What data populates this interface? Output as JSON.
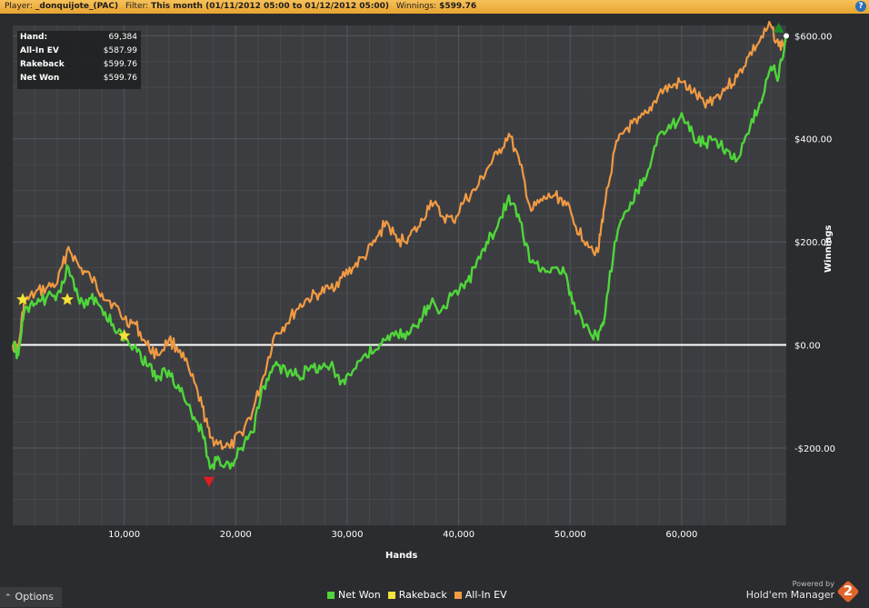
{
  "header": {
    "player_label": "Player:",
    "player_value": "_donquijote_(PAC)",
    "filter_label": "Filter:",
    "filter_value": "This month (01/11/2012 05:00 to 01/12/2012 05:00)",
    "winnings_label": "Winnings:",
    "winnings_value": "$599.76",
    "help_label": "?"
  },
  "stats": [
    {
      "label": "Hand:",
      "value": "69,384"
    },
    {
      "label": "All-In EV",
      "value": "$587.99"
    },
    {
      "label": "Rakeback",
      "value": "$599.76"
    },
    {
      "label": "Net Won",
      "value": "$599.76"
    }
  ],
  "footer": {
    "options_label": "Options",
    "powered_by": "Powered by",
    "brand": "Hold'em Manager",
    "brand_num": "2"
  },
  "colors": {
    "net_won": "#4fd63a",
    "rakeback": "#f3e33a",
    "all_in_ev": "#f09a43",
    "zero_line": "#ffffff",
    "max_marker": "#1f8a2a",
    "min_marker": "#e01c1c"
  },
  "chart_data": {
    "type": "line",
    "xlabel": "Hands",
    "ylabel": "Winnings",
    "xlim": [
      0,
      69384
    ],
    "ylim": [
      -350,
      620
    ],
    "x_ticks": [
      10000,
      20000,
      30000,
      40000,
      50000,
      60000
    ],
    "x_tick_labels": [
      "10,000",
      "20,000",
      "30,000",
      "40,000",
      "50,000",
      "60,000"
    ],
    "y_ticks": [
      -200,
      0,
      200,
      400,
      600
    ],
    "y_tick_labels": [
      "-$200.00",
      "$0.00",
      "$200.00",
      "$400.00",
      "$600.00"
    ],
    "grid": true,
    "legend_position": "bottom",
    "series": [
      {
        "name": "Net Won",
        "x": [
          0,
          500,
          1000,
          2000,
          3000,
          4000,
          5000,
          6000,
          7000,
          8000,
          9000,
          10000,
          11000,
          12000,
          13000,
          14000,
          15000,
          16000,
          17000,
          17700,
          18500,
          19500,
          20500,
          21500,
          22500,
          23500,
          24500,
          25500,
          26500,
          27500,
          28500,
          29500,
          30500,
          31500,
          32500,
          33500,
          34500,
          35500,
          36500,
          37500,
          38500,
          39500,
          40500,
          41500,
          42500,
          43500,
          44500,
          45500,
          46500,
          47500,
          48500,
          49500,
          50500,
          51500,
          52500,
          53000,
          54000,
          55000,
          56000,
          57000,
          58000,
          59000,
          60000,
          61000,
          62000,
          63000,
          64000,
          65000,
          66000,
          67000,
          68000,
          68700,
          69384
        ],
        "values": [
          0,
          -20,
          60,
          80,
          90,
          100,
          150,
          80,
          90,
          70,
          40,
          10,
          0,
          -40,
          -60,
          -50,
          -90,
          -130,
          -170,
          -240,
          -220,
          -240,
          -200,
          -170,
          -80,
          -40,
          -50,
          -60,
          -50,
          -40,
          -40,
          -70,
          -50,
          -20,
          -10,
          10,
          20,
          20,
          50,
          80,
          70,
          100,
          110,
          150,
          200,
          230,
          290,
          240,
          160,
          150,
          150,
          140,
          60,
          40,
          10,
          40,
          200,
          260,
          300,
          340,
          410,
          420,
          450,
          410,
          390,
          400,
          380,
          360,
          410,
          470,
          540,
          520,
          599.76
        ]
      },
      {
        "name": "Rakeback",
        "x": [
          0,
          69384
        ],
        "values": [
          0,
          599.76
        ],
        "markers_only": true,
        "markers": [
          {
            "x": 900,
            "y": 88
          },
          {
            "x": 4900,
            "y": 88
          },
          {
            "x": 10000,
            "y": 18
          }
        ]
      },
      {
        "name": "All-In EV",
        "x": [
          0,
          500,
          1000,
          2000,
          3000,
          4000,
          5000,
          6000,
          7000,
          8000,
          9000,
          10000,
          11000,
          12000,
          13000,
          14000,
          15000,
          16000,
          17000,
          17700,
          18500,
          19500,
          20500,
          21500,
          22500,
          23500,
          24500,
          25500,
          26500,
          27500,
          28500,
          29500,
          30500,
          31500,
          32500,
          33500,
          34500,
          35500,
          36500,
          37500,
          38500,
          39500,
          40500,
          41500,
          42500,
          43500,
          44500,
          45500,
          46500,
          47500,
          48500,
          49500,
          50500,
          51500,
          52500,
          53000,
          54000,
          55000,
          56000,
          57000,
          58000,
          59000,
          60000,
          61000,
          62000,
          63000,
          64000,
          65000,
          66000,
          67000,
          68000,
          68700,
          69384
        ],
        "values": [
          0,
          -10,
          80,
          100,
          110,
          120,
          190,
          150,
          130,
          100,
          80,
          50,
          40,
          0,
          -20,
          10,
          -10,
          -60,
          -120,
          -180,
          -190,
          -200,
          -170,
          -130,
          -60,
          20,
          40,
          70,
          90,
          100,
          110,
          130,
          150,
          170,
          200,
          240,
          200,
          210,
          230,
          280,
          250,
          240,
          280,
          300,
          340,
          370,
          410,
          350,
          260,
          280,
          290,
          280,
          230,
          200,
          180,
          260,
          380,
          420,
          430,
          450,
          490,
          500,
          510,
          490,
          470,
          480,
          500,
          520,
          560,
          590,
          620,
          580,
          587.99
        ]
      }
    ],
    "markers": [
      {
        "type": "max",
        "x": 68700,
        "y": 615
      },
      {
        "type": "min",
        "x": 17600,
        "y": -265
      }
    ]
  }
}
